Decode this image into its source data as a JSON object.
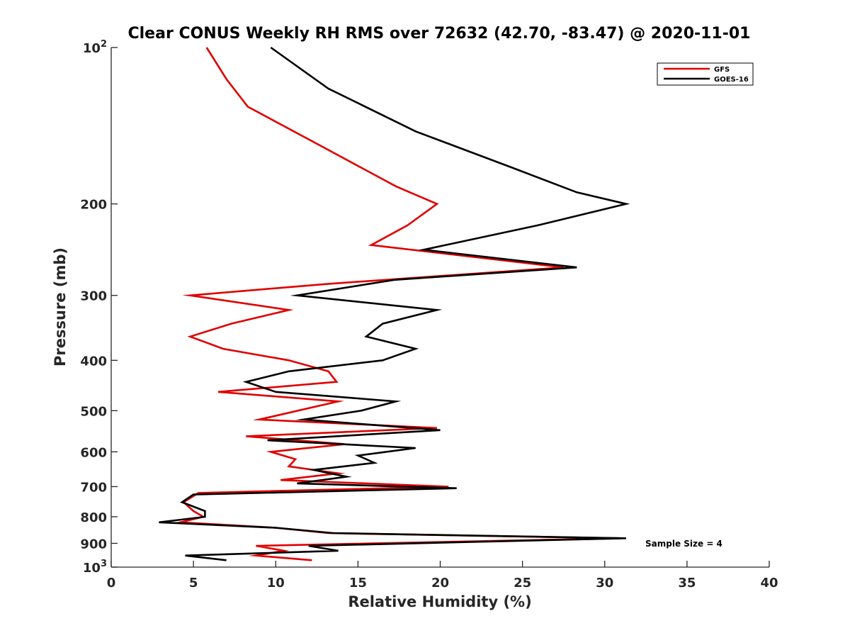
{
  "chart_data": {
    "type": "line",
    "title": "Clear CONUS Weekly RH RMS over 72632 (42.70, -83.47) @ 2020-11-01",
    "xlabel": "Relative Humidity (%)",
    "ylabel": "Pressure (mb)",
    "xlim": [
      0,
      40
    ],
    "ylim": [
      100,
      1000
    ],
    "y_scale": "log",
    "y_reversed": true,
    "x_ticks": [
      0,
      5,
      10,
      15,
      20,
      25,
      30,
      35,
      40
    ],
    "x_tick_labels": [
      "0",
      "5",
      "10",
      "15",
      "20",
      "25",
      "30",
      "35",
      "40"
    ],
    "y_ticks": [
      100,
      200,
      300,
      400,
      500,
      600,
      700,
      800,
      900,
      1000
    ],
    "y_tick_labels": [
      {
        "base": "10",
        "exp": "2"
      },
      {
        "text": "200"
      },
      {
        "text": "300"
      },
      {
        "text": "400"
      },
      {
        "text": "500"
      },
      {
        "text": "600"
      },
      {
        "text": "700"
      },
      {
        "text": "800"
      },
      {
        "text": "900"
      },
      {
        "base": "10",
        "exp": "3"
      }
    ],
    "grid": false,
    "legend_position": "top-right",
    "annotation": "Sample Size = 4",
    "series": [
      {
        "name": "GFS",
        "color": "#e00000",
        "x": [
          5.8,
          7.0,
          8.3,
          12.8,
          17.3,
          19.8,
          18.0,
          15.8,
          27.5,
          13.2,
          4.8,
          10.8,
          7.3,
          4.8,
          6.8,
          10.8,
          13.2,
          13.7,
          6.5,
          13.8,
          9.0,
          19.8,
          8.2,
          14.2,
          9.7,
          11.2,
          10.8,
          13.8,
          10.3,
          20.5,
          5.3,
          4.4,
          5.0,
          5.6,
          4.2,
          10.0,
          13.2,
          31.0,
          8.8,
          10.5,
          8.8,
          12.2
        ],
        "y": [
          100,
          115,
          130,
          155,
          185,
          200,
          220,
          240,
          265,
          285,
          300,
          320,
          340,
          360,
          380,
          400,
          420,
          440,
          460,
          480,
          520,
          540,
          560,
          580,
          600,
          620,
          640,
          660,
          680,
          700,
          720,
          750,
          780,
          800,
          820,
          840,
          860,
          880,
          910,
          930,
          950,
          970
        ]
      },
      {
        "name": "GOES-16",
        "color": "#000000",
        "x": [
          9.7,
          13.2,
          18.5,
          24.3,
          28.3,
          31.3,
          25.9,
          19.0,
          28.3,
          17.2,
          11.3,
          19.8,
          16.5,
          15.5,
          18.5,
          16.5,
          10.8,
          8.2,
          10.0,
          17.3,
          15.2,
          11.7,
          20.0,
          9.5,
          18.5,
          15.0,
          16.0,
          12.3,
          14.3,
          11.3,
          21.0,
          5.0,
          4.3,
          5.7,
          5.7,
          2.9,
          10.0,
          13.5,
          31.3,
          12.0,
          13.8,
          4.5,
          7.0
        ],
        "y": [
          100,
          120,
          145,
          170,
          190,
          200,
          220,
          245,
          265,
          280,
          300,
          320,
          340,
          360,
          380,
          400,
          420,
          440,
          460,
          480,
          500,
          520,
          545,
          570,
          590,
          610,
          630,
          650,
          670,
          690,
          705,
          725,
          750,
          780,
          800,
          820,
          840,
          860,
          880,
          910,
          930,
          950,
          970
        ]
      }
    ]
  }
}
